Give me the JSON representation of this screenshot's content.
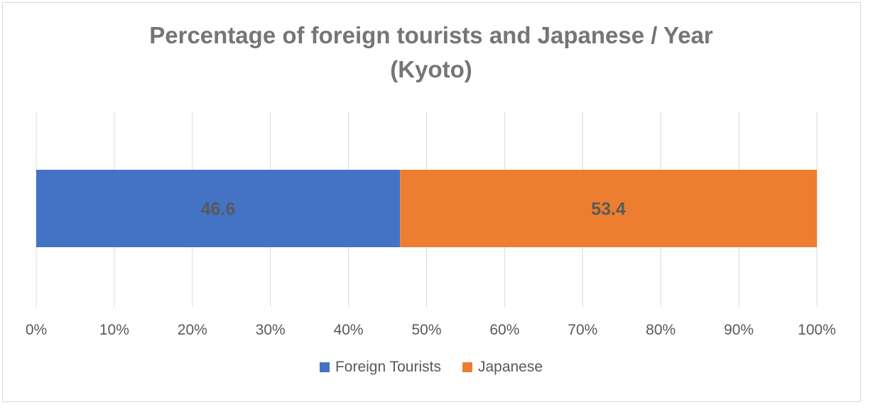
{
  "chart_data": {
    "type": "bar",
    "orientation": "horizontal",
    "stacked": "percent",
    "title": "Percentage of foreign tourists and Japanese / Year",
    "subtitle": "(Kyoto)",
    "categories": [
      ""
    ],
    "series": [
      {
        "name": "Foreign Tourists",
        "values": [
          46.6
        ],
        "color": "#4472c4"
      },
      {
        "name": "Japanese",
        "values": [
          53.4
        ],
        "color": "#ed7d31"
      }
    ],
    "xlim": [
      0,
      100
    ],
    "x_ticks": [
      "0%",
      "10%",
      "20%",
      "30%",
      "40%",
      "50%",
      "60%",
      "70%",
      "80%",
      "90%",
      "100%"
    ],
    "data_labels": [
      "46.6",
      "53.4"
    ],
    "grid": true,
    "legend_position": "bottom",
    "xlabel": "",
    "ylabel": ""
  }
}
